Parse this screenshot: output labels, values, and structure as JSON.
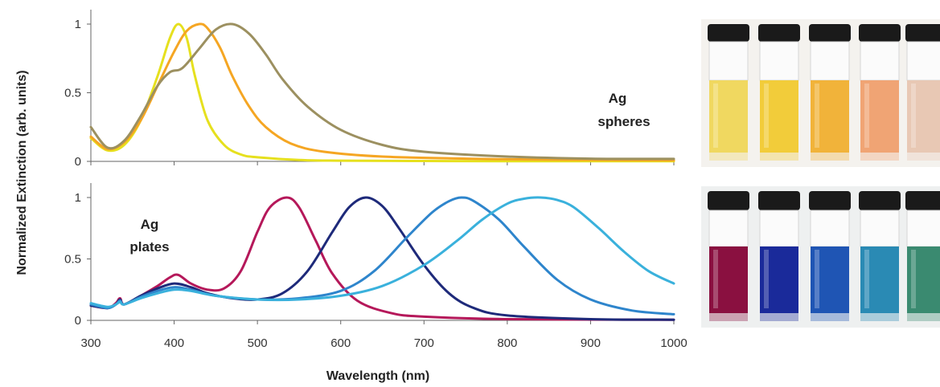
{
  "chart_data": [
    {
      "type": "line",
      "panel": "top",
      "annotation": [
        "Ag",
        "spheres"
      ],
      "xlabel": "Wavelength (nm)",
      "ylabel": "Normalized Extinction (arb. units)",
      "xlim": [
        300,
        1000
      ],
      "ylim": [
        0,
        1.05
      ],
      "yticks": [
        0,
        0.5,
        1
      ],
      "yticklabels": [
        "0",
        "0.5",
        "1"
      ],
      "grid": false,
      "series": [
        {
          "color": "#e6e01e",
          "x": [
            300,
            320,
            340,
            360,
            380,
            395,
            405,
            415,
            425,
            440,
            460,
            480,
            500,
            550,
            600,
            700,
            800,
            1000
          ],
          "y": [
            0.17,
            0.08,
            0.12,
            0.3,
            0.62,
            0.9,
            1.0,
            0.9,
            0.62,
            0.3,
            0.12,
            0.05,
            0.03,
            0.01,
            0.005,
            0.003,
            0.002,
            0.002
          ]
        },
        {
          "color": "#f5a623",
          "x": [
            300,
            320,
            340,
            360,
            380,
            400,
            415,
            430,
            440,
            455,
            470,
            490,
            510,
            540,
            580,
            650,
            750,
            850,
            1000
          ],
          "y": [
            0.18,
            0.09,
            0.14,
            0.3,
            0.55,
            0.8,
            0.95,
            1.0,
            0.97,
            0.83,
            0.62,
            0.4,
            0.25,
            0.13,
            0.07,
            0.035,
            0.02,
            0.012,
            0.008
          ]
        },
        {
          "color": "#9c9060",
          "x": [
            300,
            320,
            340,
            360,
            380,
            395,
            410,
            430,
            450,
            470,
            490,
            510,
            530,
            560,
            600,
            650,
            700,
            800,
            900,
            1000
          ],
          "y": [
            0.25,
            0.1,
            0.15,
            0.33,
            0.55,
            0.65,
            0.68,
            0.82,
            0.96,
            1.0,
            0.93,
            0.78,
            0.6,
            0.4,
            0.23,
            0.12,
            0.07,
            0.035,
            0.02,
            0.018
          ]
        }
      ]
    },
    {
      "type": "line",
      "panel": "bottom",
      "annotation": [
        "Ag",
        "plates"
      ],
      "xlabel": "Wavelength (nm)",
      "ylabel": "Normalized Extinction (arb. units)",
      "xlim": [
        300,
        1000
      ],
      "ylim": [
        0,
        1.05
      ],
      "yticks": [
        0,
        0.5,
        1
      ],
      "yticklabels": [
        "0",
        "0.5",
        "1"
      ],
      "xticks": [
        300,
        400,
        500,
        600,
        700,
        800,
        900,
        1000
      ],
      "xticklabels": [
        "300",
        "400",
        "500",
        "600",
        "700",
        "800",
        "900",
        "1000"
      ],
      "grid": false,
      "series": [
        {
          "color": "#b5185a",
          "x": [
            300,
            320,
            330,
            335,
            340,
            360,
            380,
            395,
            405,
            420,
            440,
            460,
            480,
            500,
            515,
            535,
            550,
            570,
            590,
            620,
            660,
            700,
            800,
            1000
          ],
          "y": [
            0.12,
            0.1,
            0.14,
            0.18,
            0.13,
            0.2,
            0.28,
            0.35,
            0.37,
            0.3,
            0.25,
            0.26,
            0.4,
            0.72,
            0.92,
            1.0,
            0.92,
            0.65,
            0.38,
            0.16,
            0.06,
            0.03,
            0.01,
            0.005
          ]
        },
        {
          "color": "#1e2a7a",
          "x": [
            300,
            320,
            330,
            335,
            340,
            360,
            380,
            400,
            420,
            440,
            470,
            500,
            530,
            560,
            590,
            610,
            630,
            650,
            670,
            700,
            730,
            760,
            800,
            900,
            1000
          ],
          "y": [
            0.12,
            0.1,
            0.13,
            0.17,
            0.13,
            0.2,
            0.26,
            0.3,
            0.27,
            0.22,
            0.18,
            0.17,
            0.22,
            0.4,
            0.72,
            0.92,
            1.0,
            0.93,
            0.75,
            0.45,
            0.22,
            0.1,
            0.04,
            0.01,
            0.005
          ]
        },
        {
          "color": "#2e85cc",
          "x": [
            300,
            320,
            330,
            335,
            340,
            360,
            380,
            400,
            420,
            450,
            500,
            550,
            600,
            640,
            680,
            710,
            730,
            745,
            760,
            790,
            820,
            860,
            900,
            950,
            1000
          ],
          "y": [
            0.13,
            0.1,
            0.13,
            0.16,
            0.13,
            0.19,
            0.24,
            0.27,
            0.25,
            0.2,
            0.17,
            0.18,
            0.24,
            0.4,
            0.68,
            0.88,
            0.97,
            1.0,
            0.97,
            0.82,
            0.6,
            0.33,
            0.17,
            0.08,
            0.05
          ]
        },
        {
          "color": "#3ab1dc",
          "x": [
            300,
            320,
            330,
            335,
            340,
            360,
            380,
            400,
            420,
            450,
            500,
            550,
            600,
            650,
            700,
            740,
            770,
            800,
            820,
            840,
            860,
            880,
            910,
            940,
            970,
            1000
          ],
          "y": [
            0.14,
            0.11,
            0.13,
            0.15,
            0.13,
            0.18,
            0.22,
            0.25,
            0.24,
            0.2,
            0.17,
            0.17,
            0.2,
            0.28,
            0.45,
            0.65,
            0.82,
            0.95,
            0.99,
            1.0,
            0.98,
            0.92,
            0.75,
            0.56,
            0.4,
            0.3
          ]
        }
      ]
    }
  ],
  "photos": {
    "top_vial_colors": [
      "#f0d860",
      "#f2cc3a",
      "#f1b33a",
      "#f0a474",
      "#e8c8b4"
    ],
    "bottom_vial_colors": [
      "#8a1040",
      "#1a2a9a",
      "#1f55b4",
      "#2a8ab4",
      "#3a8a70"
    ]
  }
}
